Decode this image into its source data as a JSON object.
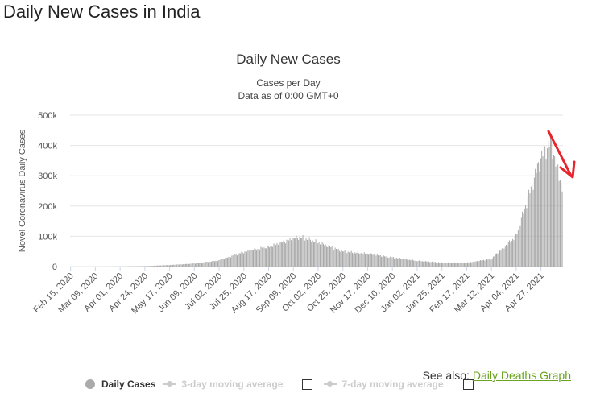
{
  "page": {
    "heading": "Daily New Cases in India"
  },
  "chart_data": {
    "type": "bar",
    "title": "Daily New Cases",
    "subtitle_lines": [
      "Cases per Day",
      "Data as of 0:00 GMT+0"
    ],
    "xlabel": "",
    "ylabel": "Novel Coronavirus Daily Cases",
    "ylim": [
      0,
      500000
    ],
    "yticks": [
      0,
      100000,
      200000,
      300000,
      400000,
      500000
    ],
    "ytick_labels": [
      "0",
      "100k",
      "200k",
      "300k",
      "400k",
      "500k"
    ],
    "x_tick_labels": [
      "Feb 15, 2020",
      "Mar 09, 2020",
      "Apr 01, 2020",
      "Apr 24, 2020",
      "May 17, 2020",
      "Jun 09, 2020",
      "Jul 02, 2020",
      "Jul 25, 2020",
      "Aug 17, 2020",
      "Sep 09, 2020",
      "Oct 02, 2020",
      "Oct 25, 2020",
      "Nov 17, 2020",
      "Dec 10, 2020",
      "Jan 02, 2021",
      "Jan 25, 2021",
      "Feb 17, 2021",
      "Mar 12, 2021",
      "Apr 04, 2021",
      "Apr 27, 2021"
    ],
    "grid": true,
    "series_name": "Daily Cases",
    "series_color": "#999999",
    "start_date": "Feb 15, 2020",
    "key_points": [
      {
        "date": "Feb 15, 2020",
        "value": 0
      },
      {
        "date": "Mar 09, 2020",
        "value": 10
      },
      {
        "date": "Apr 01, 2020",
        "value": 400
      },
      {
        "date": "Apr 24, 2020",
        "value": 1500
      },
      {
        "date": "May 17, 2020",
        "value": 5000
      },
      {
        "date": "Jun 09, 2020",
        "value": 10000
      },
      {
        "date": "Jul 02, 2020",
        "value": 20000
      },
      {
        "date": "Jul 25, 2020",
        "value": 48000
      },
      {
        "date": "Aug 17, 2020",
        "value": 65000
      },
      {
        "date": "Sep 09, 2020",
        "value": 92000
      },
      {
        "date": "Sep 16, 2020",
        "value": 97000
      },
      {
        "date": "Oct 02, 2020",
        "value": 80000
      },
      {
        "date": "Oct 25, 2020",
        "value": 50000
      },
      {
        "date": "Nov 17, 2020",
        "value": 42000
      },
      {
        "date": "Dec 10, 2020",
        "value": 30000
      },
      {
        "date": "Jan 02, 2021",
        "value": 19000
      },
      {
        "date": "Jan 25, 2021",
        "value": 13000
      },
      {
        "date": "Feb 17, 2021",
        "value": 12500
      },
      {
        "date": "Mar 12, 2021",
        "value": 25000
      },
      {
        "date": "Apr 04, 2021",
        "value": 100000
      },
      {
        "date": "Apr 27, 2021",
        "value": 360000
      },
      {
        "date": "May 06, 2021",
        "value": 414000
      },
      {
        "date": "May 17, 2021",
        "value": 263000
      }
    ],
    "legend": [
      {
        "label": "Daily Cases",
        "active": true
      },
      {
        "label": "3-day moving average",
        "active": false
      },
      {
        "label": "7-day moving average",
        "active": false
      }
    ]
  },
  "see_also": {
    "prefix": "See also: ",
    "link": "Daily Deaths Graph"
  },
  "annotation_color": "#e8232a"
}
